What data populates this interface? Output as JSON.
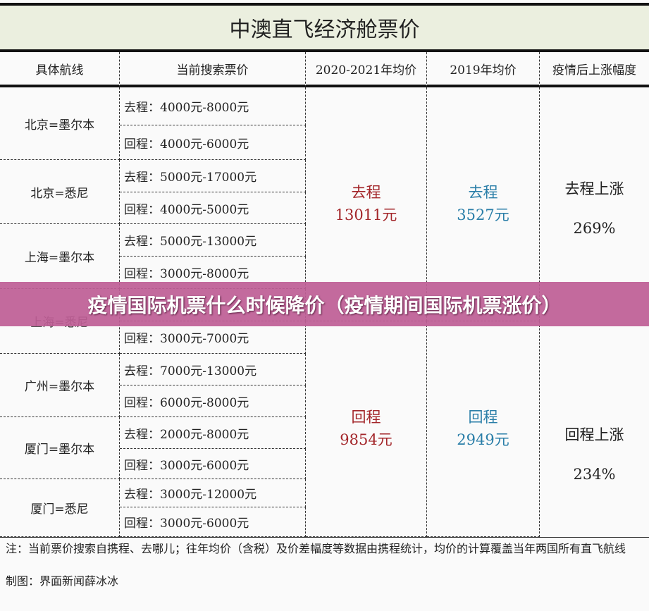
{
  "title": "中澳直飞经济舱票价",
  "headers": [
    "具体航线",
    "当前搜索票价",
    "2020-2021年均价",
    "2019年均价",
    "疫情后上涨幅度"
  ],
  "routes": [
    {
      "name": "北京=墨尔本",
      "out": "去程：4000元-8000元",
      "ret": "回程：4000元-6000元"
    },
    {
      "name": "北京=悉尼",
      "out": "去程：5000元-17000元",
      "ret": "回程：4000元-5000元"
    },
    {
      "name": "上海=墨尔本",
      "out": "去程：5000元-13000元",
      "ret": "回程：3000元-8000元"
    },
    {
      "name": "上海=悉尼",
      "out": "",
      "ret": "回程：3000元-7000元"
    },
    {
      "name": "广州=墨尔本",
      "out": "去程：7000元-13000元",
      "ret": "回程：6000元-8000元"
    },
    {
      "name": "厦门=墨尔本",
      "out": "去程：2000元-8000元",
      "ret": "回程：3000元-6000元"
    },
    {
      "name": "厦门=悉尼",
      "out": "去程：3000元-12000元",
      "ret": "回程：3000元-6000元"
    }
  ],
  "avg2020": {
    "out_label": "去程",
    "out_value": "13011元",
    "ret_label": "回程",
    "ret_value": "9854元"
  },
  "avg2019": {
    "out_label": "去程",
    "out_value": "3527元",
    "ret_label": "回程",
    "ret_value": "2949元"
  },
  "rise": {
    "out_label": "去程上涨",
    "out_value": "269%",
    "ret_label": "回程上涨",
    "ret_value": "234%"
  },
  "note": "注：当前票价搜索自携程、去哪儿；往年均价（含税）及价差幅度等数据由携程统计，均价的计算覆盖当年两国所有直飞航线",
  "credit": "制图：界面新闻薛冰冰",
  "banner": "疫情国际机票什么时候降价（疫情期间国际机票涨价）",
  "colors": {
    "title_bg": "#ebefdf",
    "banner": "#be5f96",
    "red": "#a3262a",
    "blue": "#2a7ea8"
  }
}
